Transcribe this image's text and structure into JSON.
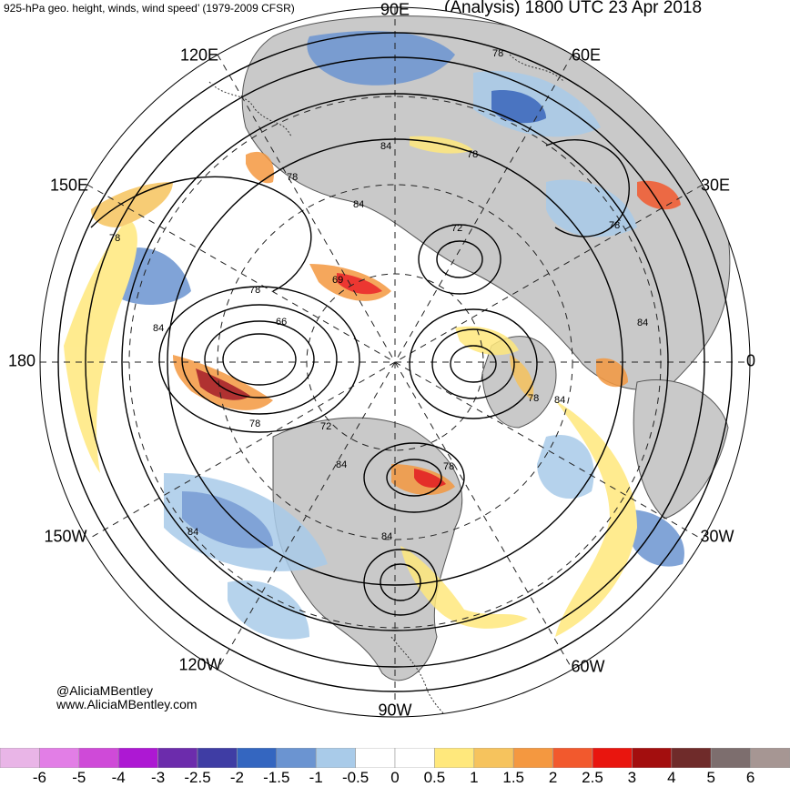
{
  "header": {
    "left_title": "925-hPa geo. height, winds, wind speed’ (1979-2009 CFSR)",
    "right_title": "(Analysis) 1800 UTC 23 Apr 2018"
  },
  "longitude_labels": [
    "90E",
    "60E",
    "30E",
    "0",
    "30W",
    "60W",
    "90W",
    "120W",
    "150W",
    "180",
    "150E",
    "120E"
  ],
  "contour_labels": [
    "78",
    "84",
    "78",
    "84",
    "78",
    "72",
    "69",
    "78",
    "66",
    "84",
    "78",
    "72",
    "84",
    "78",
    "84",
    "78",
    "84",
    "84",
    "78",
    "84",
    "78"
  ],
  "credits": {
    "handle": "@AliciaMBentley",
    "website": "www.AliciaMBentley.com"
  },
  "colorbar": {
    "labels": [
      "-6",
      "-5",
      "-4",
      "-3",
      "-2.5",
      "-2",
      "-1.5",
      "-1",
      "-0.5",
      "0",
      "0.5",
      "1",
      "1.5",
      "2",
      "2.5",
      "3",
      "4",
      "5",
      "6"
    ],
    "colors": [
      "#e9b5e7",
      "#e27ee6",
      "#cf4ad8",
      "#ad18d3",
      "#6c2cac",
      "#3f3da4",
      "#3466c0",
      "#6b94d1",
      "#a9cbe9",
      "#ffffff",
      "#ffffff",
      "#ffe87c",
      "#f6c35d",
      "#f49840",
      "#f2592d",
      "#e9150e",
      "#a30e0e",
      "#6f2b2a",
      "#7d6e6e",
      "#a69693"
    ]
  }
}
